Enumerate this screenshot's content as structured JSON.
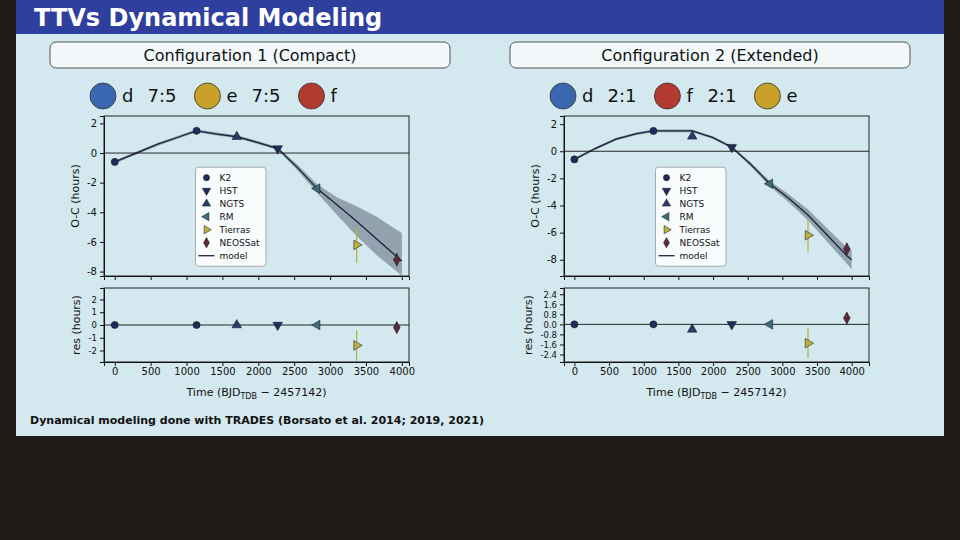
{
  "slide": {
    "title": "TTVs Dynamical Modeling",
    "footer": "Dynamical modeling done with TRADES (Borsato et al. 2014; 2019, 2021)"
  },
  "chart_data": [
    {
      "type": "scatter",
      "title": "Configuration 1 (Compact)",
      "planets": [
        {
          "name": "d",
          "color": "#3b67b0"
        },
        {
          "name": "e",
          "color": "#c9a02a"
        },
        {
          "name": "f",
          "color": "#b23a30"
        }
      ],
      "ratios": [
        "7:5",
        "7:5"
      ],
      "xlabel": [
        "Time (BJD",
        "TDB",
        " − 2457142)"
      ],
      "xlim": [
        -150,
        4100
      ],
      "xticks": [
        0,
        500,
        1000,
        1500,
        2000,
        2500,
        3000,
        3500,
        4000
      ],
      "ylabel": "O-C (hours)",
      "ylim": [
        -8.3,
        2.5
      ],
      "yticks": [
        -8,
        -6,
        -4,
        -2,
        0,
        2
      ],
      "hline": 0,
      "legend": "center",
      "series": [
        {
          "name": "K2",
          "color": "#1f2d5c",
          "marker": "circle",
          "x": [
            0,
            1140
          ],
          "values": [
            -0.6,
            1.5
          ],
          "errors": [
            0.05,
            0.05
          ],
          "residuals": [
            0.0,
            0.0
          ]
        },
        {
          "name": "HST",
          "color": "#1f2d5c",
          "marker": "triangle-down",
          "x": [
            2270
          ],
          "values": [
            0.3
          ],
          "errors": [
            0.05
          ],
          "residuals": [
            0.0
          ]
        },
        {
          "name": "NGTS",
          "color": "#2b3b6b",
          "marker": "triangle-up",
          "x": [
            1700
          ],
          "values": [
            1.1
          ],
          "errors": [
            0.08
          ],
          "residuals": [
            0.0
          ]
        },
        {
          "name": "RM",
          "color": "#3d6b7a",
          "marker": "triangle-left",
          "x": [
            2820
          ],
          "values": [
            -2.4
          ],
          "errors": [
            0.1
          ],
          "residuals": [
            0.0
          ]
        },
        {
          "name": "Tierras",
          "color": "#b8b040",
          "marker": "triangle-right",
          "x": [
            3370
          ],
          "values": [
            -6.2
          ],
          "errors": [
            1.2
          ],
          "residuals": [
            -1.6
          ]
        },
        {
          "name": "NEOSSat",
          "color": "#5a2a3a",
          "marker": "diamond",
          "x": [
            3930
          ],
          "values": [
            -7.2
          ],
          "errors": [
            0.45
          ],
          "residuals": [
            -0.2
          ]
        }
      ],
      "model": {
        "name": "model",
        "color": "#1b2238",
        "x": [
          0,
          300,
          600,
          900,
          1140,
          1400,
          1700,
          2000,
          2270,
          2550,
          2820,
          3100,
          3370,
          3650,
          3930,
          4000
        ],
        "values": [
          -0.6,
          0.0,
          0.6,
          1.1,
          1.5,
          1.3,
          1.1,
          0.7,
          0.3,
          -1.0,
          -2.4,
          -3.5,
          -4.6,
          -5.8,
          -7.0,
          -7.3
        ],
        "band_lower": [
          -0.7,
          -0.1,
          0.5,
          1.0,
          1.4,
          1.2,
          1.0,
          0.6,
          0.2,
          -1.2,
          -2.7,
          -4.2,
          -5.6,
          -6.9,
          -8.0,
          -8.3
        ],
        "band_upper": [
          -0.5,
          0.1,
          0.7,
          1.2,
          1.6,
          1.4,
          1.2,
          0.8,
          0.4,
          -0.8,
          -2.1,
          -3.0,
          -3.6,
          -4.3,
          -5.2,
          -5.4
        ]
      },
      "residual_panel": {
        "ylabel": "res (hours)",
        "ylim": [
          -2.9,
          2.9
        ],
        "yticks": [
          -2,
          -1,
          0,
          1,
          2
        ],
        "hline": 0
      }
    },
    {
      "type": "scatter",
      "title": "Configuration 2 (Extended)",
      "planets": [
        {
          "name": "d",
          "color": "#3b67b0"
        },
        {
          "name": "f",
          "color": "#b23a30"
        },
        {
          "name": "e",
          "color": "#c9a02a"
        }
      ],
      "ratios": [
        "2:1",
        "2:1"
      ],
      "xlabel": [
        "Time (BJD",
        "TDB",
        " − 2457142)"
      ],
      "xlim": [
        -150,
        4250
      ],
      "xticks": [
        0,
        500,
        1000,
        1500,
        2000,
        2500,
        3000,
        3500,
        4000
      ],
      "ylabel": "O-C (hours)",
      "ylim": [
        -9.2,
        2.6
      ],
      "yticks": [
        -8,
        -6,
        -4,
        -2,
        0,
        2
      ],
      "hline": 0,
      "legend": "center",
      "series": [
        {
          "name": "K2",
          "color": "#1f2d5c",
          "marker": "circle",
          "x": [
            0,
            1140
          ],
          "values": [
            -0.6,
            1.5
          ],
          "errors": [
            0.05,
            0.05
          ],
          "residuals": [
            0.0,
            0.0
          ]
        },
        {
          "name": "HST",
          "color": "#1f2d5c",
          "marker": "triangle-down",
          "x": [
            2270
          ],
          "values": [
            0.3
          ],
          "errors": [
            0.05
          ],
          "residuals": [
            0.0
          ]
        },
        {
          "name": "NGTS",
          "color": "#2b3b6b",
          "marker": "triangle-up",
          "x": [
            1700
          ],
          "values": [
            1.1
          ],
          "errors": [
            0.08
          ],
          "residuals": [
            -0.4
          ]
        },
        {
          "name": "RM",
          "color": "#3d6b7a",
          "marker": "triangle-left",
          "x": [
            2820
          ],
          "values": [
            -2.4
          ],
          "errors": [
            0.1
          ],
          "residuals": [
            0.0
          ]
        },
        {
          "name": "Tierras",
          "color": "#b8b040",
          "marker": "triangle-right",
          "x": [
            3370
          ],
          "values": [
            -6.2
          ],
          "errors": [
            1.2
          ],
          "residuals": [
            -1.5
          ]
        },
        {
          "name": "NEOSSat",
          "color": "#5a2a3a",
          "marker": "diamond",
          "x": [
            3930
          ],
          "values": [
            -7.2
          ],
          "errors": [
            0.45
          ],
          "residuals": [
            0.5
          ]
        }
      ],
      "model": {
        "name": "model",
        "color": "#1b2238",
        "x": [
          0,
          300,
          600,
          900,
          1140,
          1400,
          1700,
          2000,
          2270,
          2550,
          2820,
          3100,
          3370,
          3650,
          3930,
          4000
        ],
        "values": [
          -0.6,
          0.2,
          0.9,
          1.3,
          1.5,
          1.5,
          1.5,
          1.0,
          0.3,
          -1.0,
          -2.4,
          -3.5,
          -4.7,
          -6.2,
          -7.7,
          -8.0
        ],
        "band_lower": [
          -0.7,
          0.1,
          0.8,
          1.2,
          1.4,
          1.4,
          1.4,
          0.9,
          0.2,
          -1.15,
          -2.6,
          -3.8,
          -5.1,
          -6.7,
          -8.3,
          -8.7
        ],
        "band_upper": [
          -0.5,
          0.3,
          1.0,
          1.4,
          1.6,
          1.6,
          1.6,
          1.1,
          0.4,
          -0.85,
          -2.2,
          -3.2,
          -4.3,
          -5.7,
          -7.1,
          -7.3
        ]
      },
      "residual_panel": {
        "ylabel": "res (hours)",
        "ylim": [
          -3.0,
          2.9
        ],
        "yticks": [
          -2.4,
          -1.6,
          -0.8,
          {
            "value": 0,
            "label": "0.0"
          },
          0.8,
          1.6,
          2.4
        ],
        "hline": 0
      }
    }
  ]
}
